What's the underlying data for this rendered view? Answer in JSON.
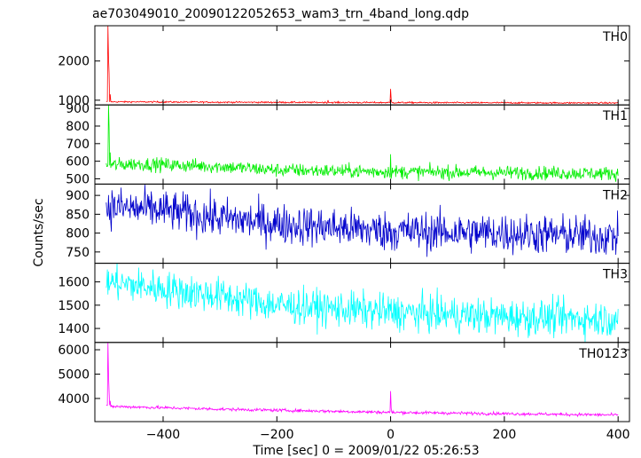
{
  "chart_data": {
    "type": "line",
    "title": "ae703049010_20090122052653_wam3_trn_4band_long.qdp",
    "xlabel": "Time [sec] 0 = 2009/01/22 05:26:53",
    "ylabel": "Counts/sec",
    "xlim": [
      -520,
      420
    ],
    "xticks": [
      -400,
      -200,
      0,
      200,
      400
    ],
    "grid": false,
    "panels": [
      {
        "name": "TH0",
        "color": "#ff0000",
        "ylim": [
          880,
          2900
        ],
        "yticks": [
          1000,
          2000
        ],
        "baseline": [
          [
            -500,
            960
          ],
          [
            -300,
            950
          ],
          [
            0,
            940
          ],
          [
            400,
            930
          ]
        ],
        "noise": 14,
        "spikes": [
          [
            -497,
            2900
          ],
          [
            -496,
            2100
          ],
          [
            -495,
            1700
          ],
          [
            -493,
            1150
          ],
          [
            -110,
            1000
          ],
          [
            0,
            1290
          ],
          [
            1,
            1020
          ]
        ]
      },
      {
        "name": "TH1",
        "color": "#00ee00",
        "ylim": [
          470,
          920
        ],
        "yticks": [
          500,
          600,
          700,
          800,
          900
        ],
        "baseline": [
          [
            -500,
            575
          ],
          [
            -450,
            585
          ],
          [
            -300,
            570
          ],
          [
            -200,
            550
          ],
          [
            0,
            540
          ],
          [
            400,
            530
          ]
        ],
        "noise": 28,
        "spikes": [
          [
            -496,
            920
          ],
          [
            -495,
            800
          ],
          [
            -493,
            650
          ],
          [
            0,
            640
          ]
        ]
      },
      {
        "name": "TH2",
        "color": "#0000cc",
        "ylim": [
          720,
          930
        ],
        "yticks": [
          750,
          800,
          850,
          900
        ],
        "baseline": [
          [
            -500,
            870
          ],
          [
            -400,
            860
          ],
          [
            -300,
            840
          ],
          [
            -200,
            825
          ],
          [
            0,
            805
          ],
          [
            200,
            800
          ],
          [
            400,
            790
          ]
        ],
        "noise": 38,
        "spikes": []
      },
      {
        "name": "TH3",
        "color": "#00ffff",
        "ylim": [
          1340,
          1680
        ],
        "yticks": [
          1400,
          1500,
          1600
        ],
        "baseline": [
          [
            -500,
            1600
          ],
          [
            -400,
            1570
          ],
          [
            -300,
            1540
          ],
          [
            -200,
            1500
          ],
          [
            0,
            1470
          ],
          [
            200,
            1450
          ],
          [
            400,
            1440
          ]
        ],
        "noise": 55,
        "spikes": []
      },
      {
        "name": "TH0123",
        "color": "#ff00ff",
        "ylim": [
          3050,
          6300
        ],
        "yticks": [
          4000,
          5000,
          6000
        ],
        "baseline": [
          [
            -500,
            3680
          ],
          [
            -300,
            3560
          ],
          [
            0,
            3430
          ],
          [
            400,
            3320
          ]
        ],
        "noise": 45,
        "spikes": [
          [
            -497,
            6300
          ],
          [
            -496,
            5000
          ],
          [
            -495,
            4300
          ],
          [
            -493,
            3900
          ],
          [
            0,
            4300
          ],
          [
            1,
            3600
          ]
        ]
      }
    ]
  }
}
